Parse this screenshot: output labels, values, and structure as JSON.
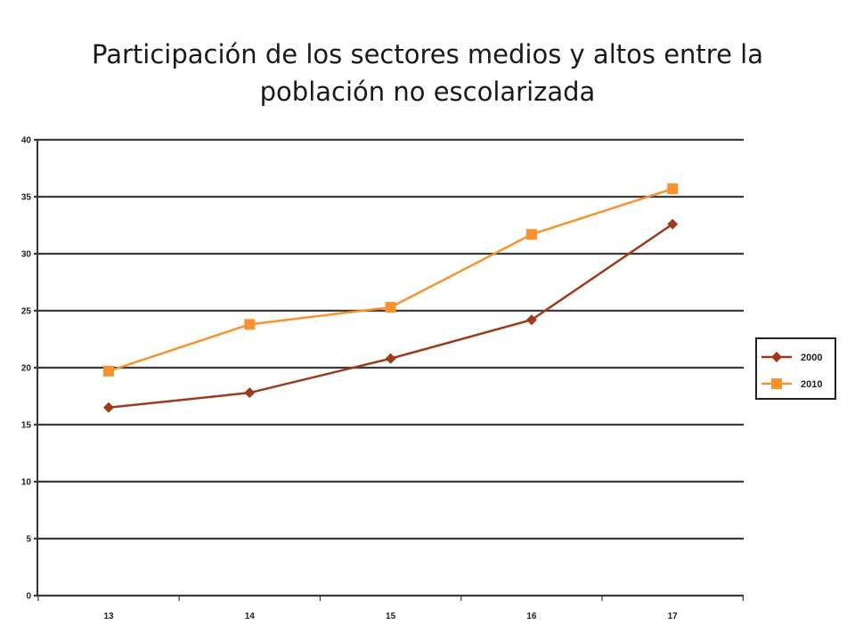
{
  "title": {
    "line1": "Participación de los sectores medios y altos entre la",
    "line2": "población no escolarizada"
  },
  "chart_data": {
    "type": "line",
    "title": "Participación de los sectores medios y altos entre la población no escolarizada",
    "x": [
      "13",
      "14",
      "15",
      "16",
      "17"
    ],
    "ylim": [
      0,
      40
    ],
    "yticks": [
      "0",
      "5",
      "10",
      "15",
      "20",
      "25",
      "30",
      "35",
      "40"
    ],
    "grid": true,
    "legend_position": "right",
    "series": [
      {
        "name": "2000",
        "values": [
          16.5,
          17.8,
          20.8,
          24.2,
          32.6
        ],
        "color": "#9b3b1c",
        "marker": "diamond"
      },
      {
        "name": "2010",
        "values": [
          19.7,
          23.8,
          25.3,
          31.7,
          35.7
        ],
        "color": "#f7922e",
        "marker": "square"
      }
    ]
  }
}
